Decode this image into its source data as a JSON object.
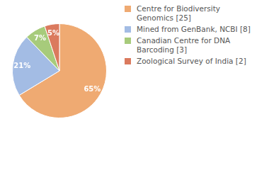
{
  "chart_data": {
    "type": "pie",
    "categories": [
      "Centre for Biodiversity Genomics [25]",
      "Mined from GenBank, NCBI [8]",
      "Canadian Centre for DNA Barcoding [3]",
      "Zoological Survey of India [2]"
    ],
    "values": [
      65,
      21,
      7,
      5
    ],
    "value_labels": [
      "65%",
      "21%",
      "7%",
      "5%"
    ],
    "colors": [
      "#efaa72",
      "#a3bce4",
      "#a7cb7b",
      "#db7a5e"
    ],
    "data_labels": true,
    "legend": "right"
  }
}
